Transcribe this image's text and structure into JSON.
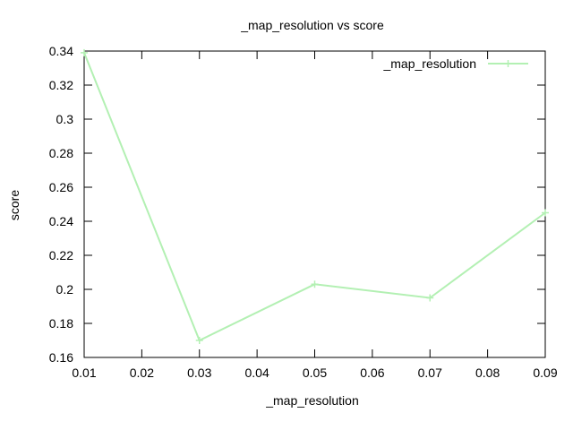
{
  "chart_data": {
    "type": "line",
    "title": "_map_resolution vs score",
    "xlabel": "_map_resolution",
    "ylabel": "score",
    "xlim": [
      0.01,
      0.09
    ],
    "ylim": [
      0.16,
      0.34
    ],
    "x_ticks": [
      "0.01",
      "0.02",
      "0.03",
      "0.04",
      "0.05",
      "0.06",
      "0.07",
      "0.08",
      "0.09"
    ],
    "y_ticks": [
      "0.16",
      "0.18",
      "0.2",
      "0.22",
      "0.24",
      "0.26",
      "0.28",
      "0.3",
      "0.32",
      "0.34"
    ],
    "grid": false,
    "legend": "top-right",
    "series": [
      {
        "name": "_map_resolution",
        "color": "#b3f0b3",
        "x": [
          0.01,
          0.03,
          0.05,
          0.07,
          0.09
        ],
        "y": [
          0.339,
          0.17,
          0.203,
          0.195,
          0.245
        ]
      }
    ]
  }
}
